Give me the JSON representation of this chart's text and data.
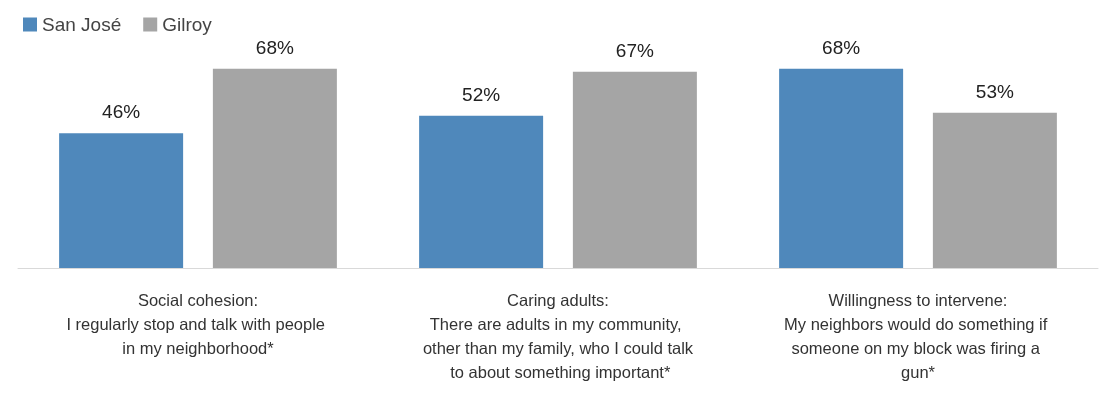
{
  "chart_data": {
    "type": "bar",
    "categories": [
      "Social cohesion:\nI regularly stop and talk with people in my neighborhood*",
      "Caring adults:\nThere are adults in my community, other than my family, who I could talk to about something important*",
      "Willingness to intervene:\nMy neighbors would do something if someone on my block was firing a gun*"
    ],
    "series": [
      {
        "name": "San José",
        "color": "#4f88bb",
        "values": [
          46,
          52,
          68
        ],
        "value_labels": [
          "46%",
          "52%",
          "68%"
        ]
      },
      {
        "name": "Gilroy",
        "color": "#a5a5a5",
        "values": [
          68,
          67,
          53
        ],
        "value_labels": [
          "68%",
          "67%",
          "53%"
        ]
      }
    ],
    "tick_labels": "x",
    "legend": "top left"
  }
}
